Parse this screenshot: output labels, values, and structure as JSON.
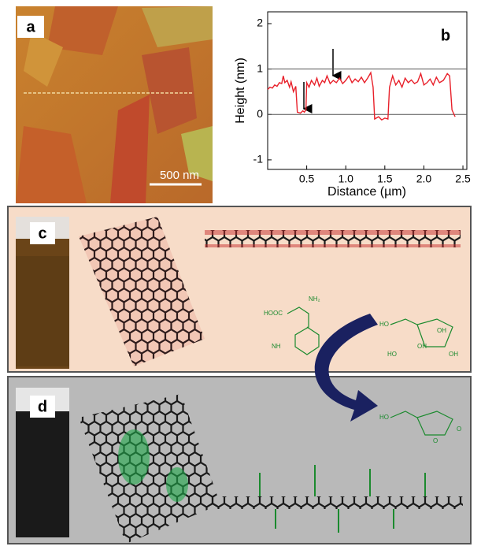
{
  "panels": {
    "a": {
      "label": "a",
      "scale_bar": "500 nm"
    },
    "c": {
      "label": "c",
      "chemistry": [
        "HOOC",
        "NH₂",
        "NH",
        "HO",
        "OH",
        "OH",
        "HO",
        "OH"
      ]
    },
    "d": {
      "label": "d",
      "chemistry": [
        "HO",
        "O",
        "O"
      ]
    }
  },
  "chart_data": {
    "type": "line",
    "label": "b",
    "x_label": "Distance (µm)",
    "y_label": "Height (nm)",
    "xlim": [
      0,
      2.55
    ],
    "ylim": [
      -1.21,
      2.26
    ],
    "xticks": [
      0.5,
      {
        "value": 1,
        "label": "1.0"
      },
      1.5,
      {
        "value": 2,
        "label": "2.0"
      },
      2.5
    ],
    "yticks": [
      2,
      1,
      0,
      -1
    ],
    "hlines": [
      0,
      1
    ],
    "color": "#e8202a",
    "x": [
      0,
      0.03,
      0.06,
      0.09,
      0.12,
      0.15,
      0.18,
      0.2,
      0.22,
      0.25,
      0.28,
      0.3,
      0.33,
      0.36,
      0.38,
      0.42,
      0.45,
      0.47,
      0.49,
      0.5,
      0.53,
      0.56,
      0.6,
      0.63,
      0.66,
      0.7,
      0.73,
      0.76,
      0.8,
      0.84,
      0.88,
      0.92,
      0.96,
      1.0,
      1.04,
      1.08,
      1.12,
      1.16,
      1.2,
      1.24,
      1.28,
      1.32,
      1.35,
      1.37,
      1.42,
      1.46,
      1.5,
      1.54,
      1.56,
      1.6,
      1.64,
      1.68,
      1.72,
      1.76,
      1.8,
      1.84,
      1.88,
      1.92,
      1.96,
      2.0,
      2.04,
      2.08,
      2.12,
      2.16,
      2.2,
      2.25,
      2.3,
      2.33,
      2.36,
      2.4
    ],
    "values": [
      0.55,
      0.6,
      0.58,
      0.65,
      0.62,
      0.7,
      0.68,
      0.85,
      0.7,
      0.75,
      0.6,
      0.72,
      0.5,
      0.62,
      0.05,
      0.03,
      0.08,
      0.05,
      0.1,
      0.7,
      0.6,
      0.75,
      0.65,
      0.8,
      0.62,
      0.75,
      0.7,
      0.85,
      0.68,
      0.75,
      0.7,
      0.8,
      0.68,
      0.75,
      0.85,
      0.7,
      0.78,
      0.72,
      0.82,
      0.7,
      0.8,
      0.92,
      0.6,
      -0.1,
      -0.05,
      -0.12,
      -0.08,
      -0.1,
      0.6,
      0.85,
      0.65,
      0.75,
      0.6,
      0.8,
      0.7,
      0.76,
      0.68,
      0.72,
      0.9,
      0.65,
      0.7,
      0.78,
      0.65,
      0.82,
      0.7,
      0.75,
      0.9,
      0.85,
      0.1,
      -0.05
    ]
  }
}
